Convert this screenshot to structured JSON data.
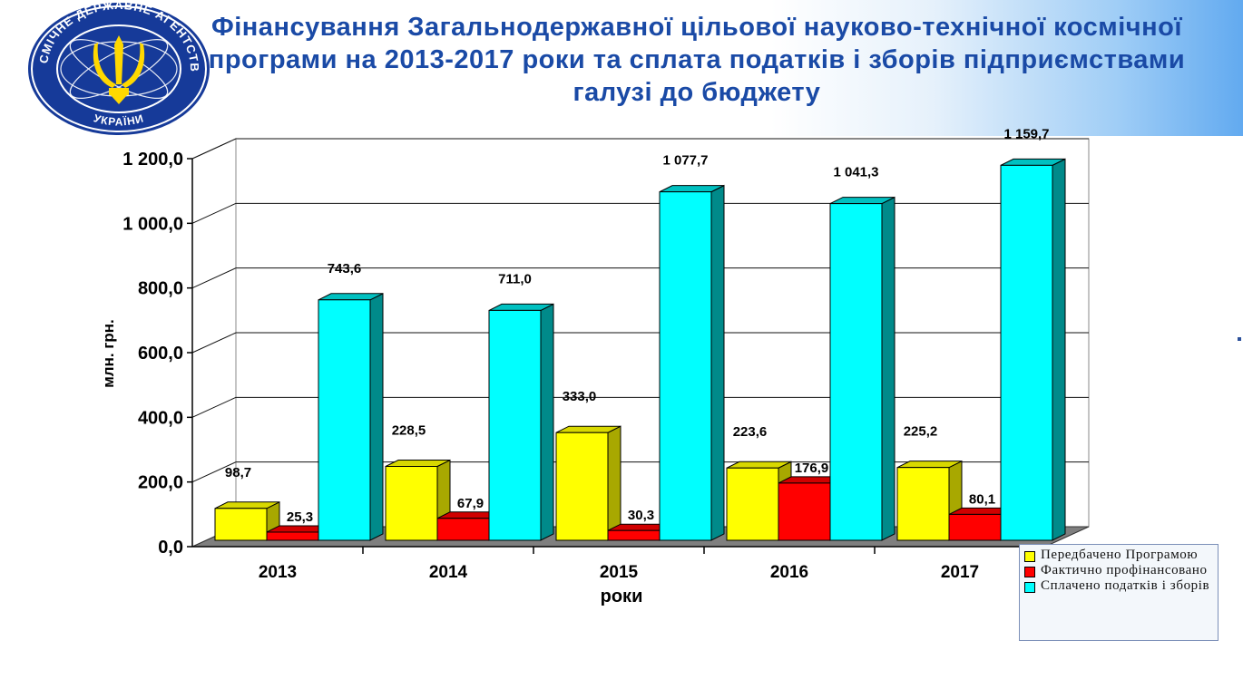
{
  "title": "Фінансування Загальнодержавної цільової науково-технічної космічної програми на 2013-2017 роки та сплата податків і зборів підприємствами галузі до бюджету",
  "emblem": {
    "top_text": "КОСМІЧНЕ",
    "left_text": "ДЕРЖАВНЕ",
    "right_text": "АГЕНТСТВО",
    "bottom_text": "УКРАЇНИ",
    "icon": "trident-emblem-icon"
  },
  "chart_data": {
    "type": "bar",
    "categories": [
      "2013",
      "2014",
      "2015",
      "2016",
      "2017"
    ],
    "series": [
      {
        "name": "Передбачено Програмою",
        "values": [
          98.7,
          228.5,
          333.0,
          223.6,
          225.2
        ],
        "labels": [
          "98,7",
          "228,5",
          "333,0",
          "223,6",
          "225,2"
        ],
        "color": "#ffff00"
      },
      {
        "name": "Фактично профінансовано",
        "values": [
          25.3,
          67.9,
          30.3,
          176.9,
          80.1
        ],
        "labels": [
          "25,3",
          "67,9",
          "30,3",
          "176,9",
          "80,1"
        ],
        "color": "#ff0000"
      },
      {
        "name": "Сплачено податків і зборів",
        "values": [
          743.6,
          711.0,
          1077.7,
          1041.3,
          1159.7
        ],
        "labels": [
          "743,6",
          "711,0",
          "1 077,7",
          "1 041,3",
          "1 159,7"
        ],
        "color": "#00ffff"
      }
    ],
    "xlabel": "роки",
    "ylabel": "млн. грн.",
    "ylim": [
      0,
      1200
    ],
    "yticks": [
      0,
      200,
      400,
      600,
      800,
      1000,
      1200
    ],
    "ytick_labels": [
      "0,0",
      "200,0",
      "400,0",
      "600,0",
      "800,0",
      "1 000,0",
      "1 200,0"
    ],
    "grid": true,
    "legend": "bottom-right",
    "style": "3d"
  }
}
